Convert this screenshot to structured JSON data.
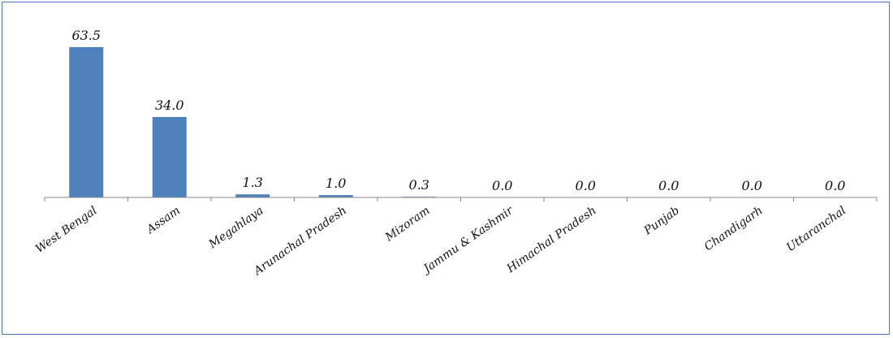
{
  "chart_data": {
    "type": "bar",
    "title": "",
    "xlabel": "",
    "ylabel": "",
    "categories": [
      "West Bengal",
      "Assam",
      "Megahlaya",
      "Arunachal Pradesh",
      "Mizoram",
      "Jammu & Kashmir",
      "Himachal Pradesh",
      "Punjab",
      "Chandigarh",
      "Uttaranchal"
    ],
    "values": [
      63.5,
      34.0,
      1.3,
      1.0,
      0.3,
      0.0,
      0.0,
      0.0,
      0.0,
      0.0
    ],
    "value_labels": [
      "63.5",
      "34.0",
      "1.3",
      "1.0",
      "0.3",
      "0.0",
      "0.0",
      "0.0",
      "0.0",
      "0.0"
    ],
    "ylim": [
      0,
      63.5
    ],
    "grid": false,
    "legend": "none",
    "bar_color": "#4f81bd"
  }
}
